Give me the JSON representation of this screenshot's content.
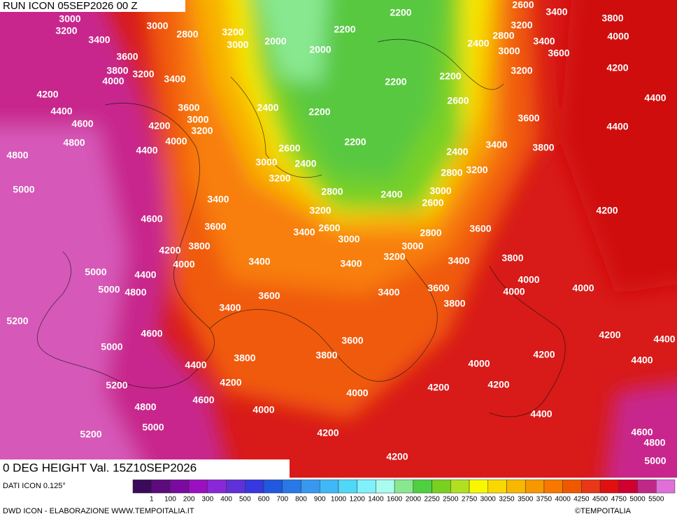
{
  "header": {
    "run": "RUN ICON 05SEP2026 00 Z"
  },
  "map": {
    "contour_labels": [
      3000,
      3200,
      3000,
      3400,
      2800,
      3200,
      3000,
      2200,
      2600,
      3400,
      3800,
      2200,
      2000,
      2000,
      3200,
      2800,
      3400,
      4000,
      3600,
      2400,
      3000,
      3600,
      3800,
      3200,
      4000,
      3400,
      2200,
      2200,
      3200,
      4200,
      4200,
      4400,
      2400,
      2600,
      3600,
      2200,
      4400,
      3000,
      4200,
      3200,
      4600,
      3600,
      4400,
      4000,
      4800,
      2200,
      2600,
      2400,
      3400,
      3800,
      4400,
      4800,
      3000,
      2400,
      2800,
      3200,
      3200,
      5000,
      2800,
      2400,
      3000,
      3400,
      2600,
      4200,
      3200,
      4600,
      3600,
      2600,
      3400,
      2800,
      3600,
      3000,
      3000,
      4200,
      3800,
      3200,
      3400,
      3400,
      3400,
      3800,
      4000,
      5000,
      4400,
      4000,
      5000,
      4800,
      3600,
      3400,
      3600,
      4000,
      4000,
      3400,
      3800,
      5200,
      4600,
      3600,
      4200,
      4400,
      5000,
      3800,
      3800,
      4200,
      4400,
      4000,
      4400,
      4200,
      5200,
      4200,
      4200,
      4000,
      4600,
      4800,
      4000,
      4400,
      5000,
      5200,
      4200,
      4600,
      4800,
      4200,
      5000
    ]
  },
  "footer": {
    "title": "0 DEG HEIGHT Val. 15Z10SEP2026",
    "source": "DATI ICON 0.125°",
    "credits": "DWD ICON - ELABORAZIONE WWW.TEMPOITALIA.IT",
    "brand": "©TEMPOITALIA"
  },
  "legend": {
    "ticks": [
      1,
      100,
      200,
      300,
      400,
      500,
      600,
      700,
      800,
      900,
      1000,
      1200,
      1400,
      1600,
      2000,
      2250,
      2500,
      2750,
      3000,
      3250,
      3500,
      3750,
      4000,
      4250,
      4500,
      4750,
      5000,
      5500
    ],
    "colors": [
      "#3c0a5a",
      "#5c0a7c",
      "#7a0aa0",
      "#9a10c0",
      "#8a28d8",
      "#6030d8",
      "#3838e0",
      "#2058e0",
      "#2878e8",
      "#3898f0",
      "#40b8f8",
      "#50d8f8",
      "#80f0fc",
      "#a8fcf0",
      "#88e890",
      "#50d040",
      "#78d020",
      "#b0e020",
      "#f8f800",
      "#f8d800",
      "#f8b800",
      "#f89800",
      "#f87800",
      "#f05800",
      "#e83818",
      "#e01010",
      "#d00030",
      "#c02888",
      "#e070d8"
    ]
  }
}
